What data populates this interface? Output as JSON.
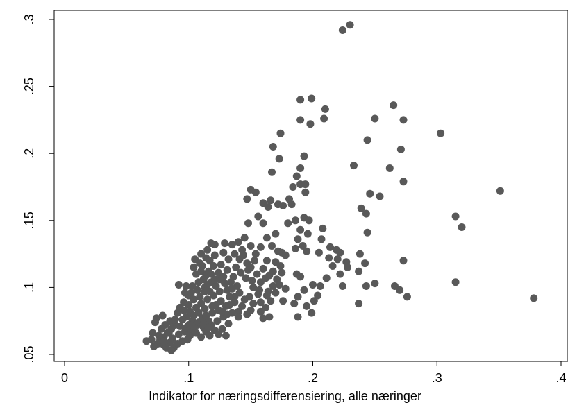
{
  "chart_data": {
    "type": "scatter",
    "title": "",
    "xlabel": "Indikator for næringsdifferensiering, alle næringer",
    "ylabel": "",
    "xlim": [
      0,
      0.4
    ],
    "ylim": [
      0.05,
      0.3
    ],
    "x_ticks": [
      0,
      0.1,
      0.2,
      0.3,
      0.4
    ],
    "x_tick_labels": [
      "0",
      ".1",
      ".2",
      ".3",
      ".4"
    ],
    "y_ticks": [
      0.05,
      0.1,
      0.15,
      0.2,
      0.25,
      0.3
    ],
    "y_tick_labels": [
      ".05",
      ".1",
      ".15",
      ".2",
      ".25",
      ".3"
    ],
    "grid": false,
    "legend": "none",
    "marker_color": "#595959",
    "points": [
      [
        0.224,
        0.292
      ],
      [
        0.23,
        0.296
      ],
      [
        0.19,
        0.24
      ],
      [
        0.199,
        0.241
      ],
      [
        0.21,
        0.233
      ],
      [
        0.19,
        0.225
      ],
      [
        0.198,
        0.222
      ],
      [
        0.209,
        0.226
      ],
      [
        0.174,
        0.215
      ],
      [
        0.168,
        0.205
      ],
      [
        0.173,
        0.196
      ],
      [
        0.167,
        0.186
      ],
      [
        0.193,
        0.198
      ],
      [
        0.265,
        0.236
      ],
      [
        0.25,
        0.226
      ],
      [
        0.273,
        0.225
      ],
      [
        0.244,
        0.21
      ],
      [
        0.303,
        0.215
      ],
      [
        0.271,
        0.203
      ],
      [
        0.233,
        0.191
      ],
      [
        0.262,
        0.189
      ],
      [
        0.273,
        0.179
      ],
      [
        0.351,
        0.172
      ],
      [
        0.315,
        0.153
      ],
      [
        0.32,
        0.145
      ],
      [
        0.246,
        0.17
      ],
      [
        0.254,
        0.168
      ],
      [
        0.239,
        0.159
      ],
      [
        0.243,
        0.155
      ],
      [
        0.244,
        0.141
      ],
      [
        0.238,
        0.125
      ],
      [
        0.242,
        0.118
      ],
      [
        0.273,
        0.12
      ],
      [
        0.237,
        0.112
      ],
      [
        0.228,
        0.115
      ],
      [
        0.25,
        0.103
      ],
      [
        0.243,
        0.101
      ],
      [
        0.266,
        0.101
      ],
      [
        0.27,
        0.098
      ],
      [
        0.276,
        0.093
      ],
      [
        0.315,
        0.104
      ],
      [
        0.378,
        0.092
      ],
      [
        0.237,
        0.088
      ],
      [
        0.187,
        0.183
      ],
      [
        0.19,
        0.177
      ],
      [
        0.194,
        0.177
      ],
      [
        0.184,
        0.175
      ],
      [
        0.194,
        0.171
      ],
      [
        0.19,
        0.189
      ],
      [
        0.181,
        0.166
      ],
      [
        0.183,
        0.162
      ],
      [
        0.176,
        0.161
      ],
      [
        0.172,
        0.162
      ],
      [
        0.164,
        0.16
      ],
      [
        0.166,
        0.165
      ],
      [
        0.16,
        0.163
      ],
      [
        0.15,
        0.173
      ],
      [
        0.154,
        0.171
      ],
      [
        0.147,
        0.166
      ],
      [
        0.156,
        0.153
      ],
      [
        0.148,
        0.148
      ],
      [
        0.16,
        0.148
      ],
      [
        0.186,
        0.15
      ],
      [
        0.193,
        0.152
      ],
      [
        0.197,
        0.15
      ],
      [
        0.18,
        0.148
      ],
      [
        0.19,
        0.143
      ],
      [
        0.196,
        0.14
      ],
      [
        0.188,
        0.136
      ],
      [
        0.192,
        0.131
      ],
      [
        0.186,
        0.129
      ],
      [
        0.195,
        0.127
      ],
      [
        0.208,
        0.144
      ],
      [
        0.207,
        0.136
      ],
      [
        0.214,
        0.13
      ],
      [
        0.205,
        0.126
      ],
      [
        0.219,
        0.128
      ],
      [
        0.222,
        0.126
      ],
      [
        0.213,
        0.122
      ],
      [
        0.22,
        0.121
      ],
      [
        0.227,
        0.119
      ],
      [
        0.216,
        0.116
      ],
      [
        0.222,
        0.11
      ],
      [
        0.211,
        0.107
      ],
      [
        0.206,
        0.101
      ],
      [
        0.2,
        0.102
      ],
      [
        0.204,
        0.094
      ],
      [
        0.201,
        0.09
      ],
      [
        0.19,
        0.108
      ],
      [
        0.187,
        0.11
      ],
      [
        0.193,
        0.098
      ],
      [
        0.188,
        0.093
      ],
      [
        0.185,
        0.088
      ],
      [
        0.188,
        0.078
      ],
      [
        0.195,
        0.086
      ],
      [
        0.199,
        0.081
      ],
      [
        0.224,
        0.101
      ],
      [
        0.17,
        0.14
      ],
      [
        0.163,
        0.137
      ],
      [
        0.158,
        0.13
      ],
      [
        0.167,
        0.131
      ],
      [
        0.172,
        0.127
      ],
      [
        0.175,
        0.126
      ],
      [
        0.178,
        0.124
      ],
      [
        0.163,
        0.12
      ],
      [
        0.17,
        0.119
      ],
      [
        0.174,
        0.116
      ],
      [
        0.168,
        0.112
      ],
      [
        0.175,
        0.111
      ],
      [
        0.171,
        0.106
      ],
      [
        0.173,
        0.102
      ],
      [
        0.178,
        0.099
      ],
      [
        0.17,
        0.096
      ],
      [
        0.176,
        0.09
      ],
      [
        0.164,
        0.097
      ],
      [
        0.166,
        0.09
      ],
      [
        0.162,
        0.085
      ],
      [
        0.158,
        0.082
      ],
      [
        0.165,
        0.078
      ],
      [
        0.16,
        0.077
      ],
      [
        0.154,
        0.125
      ],
      [
        0.15,
        0.131
      ],
      [
        0.145,
        0.137
      ],
      [
        0.14,
        0.134
      ],
      [
        0.147,
        0.118
      ],
      [
        0.15,
        0.115
      ],
      [
        0.155,
        0.11
      ],
      [
        0.146,
        0.107
      ],
      [
        0.142,
        0.111
      ],
      [
        0.139,
        0.101
      ],
      [
        0.152,
        0.1
      ],
      [
        0.156,
        0.095
      ],
      [
        0.149,
        0.093
      ],
      [
        0.145,
        0.091
      ],
      [
        0.152,
        0.088
      ],
      [
        0.158,
        0.089
      ],
      [
        0.143,
        0.086
      ],
      [
        0.15,
        0.083
      ],
      [
        0.147,
        0.08
      ],
      [
        0.14,
        0.082
      ],
      [
        0.133,
        0.087
      ],
      [
        0.137,
        0.093
      ],
      [
        0.131,
        0.098
      ],
      [
        0.134,
        0.104
      ],
      [
        0.128,
        0.108
      ],
      [
        0.131,
        0.113
      ],
      [
        0.126,
        0.117
      ],
      [
        0.132,
        0.121
      ],
      [
        0.128,
        0.126
      ],
      [
        0.121,
        0.132
      ],
      [
        0.129,
        0.133
      ],
      [
        0.135,
        0.132
      ],
      [
        0.143,
        0.128
      ],
      [
        0.121,
        0.124
      ],
      [
        0.117,
        0.12
      ],
      [
        0.111,
        0.116
      ],
      [
        0.116,
        0.112
      ],
      [
        0.112,
        0.106
      ],
      [
        0.118,
        0.104
      ],
      [
        0.122,
        0.101
      ],
      [
        0.125,
        0.097
      ],
      [
        0.12,
        0.094
      ],
      [
        0.115,
        0.091
      ],
      [
        0.126,
        0.09
      ],
      [
        0.13,
        0.086
      ],
      [
        0.124,
        0.083
      ],
      [
        0.119,
        0.081
      ],
      [
        0.128,
        0.078
      ],
      [
        0.123,
        0.075
      ],
      [
        0.118,
        0.072
      ],
      [
        0.132,
        0.073
      ],
      [
        0.127,
        0.069
      ],
      [
        0.121,
        0.068
      ],
      [
        0.112,
        0.07
      ],
      [
        0.107,
        0.072
      ],
      [
        0.103,
        0.075
      ],
      [
        0.098,
        0.078
      ],
      [
        0.101,
        0.082
      ],
      [
        0.106,
        0.085
      ],
      [
        0.11,
        0.088
      ],
      [
        0.104,
        0.091
      ],
      [
        0.1,
        0.094
      ],
      [
        0.096,
        0.089
      ],
      [
        0.093,
        0.085
      ],
      [
        0.091,
        0.081
      ],
      [
        0.095,
        0.076
      ],
      [
        0.089,
        0.072
      ],
      [
        0.086,
        0.069
      ],
      [
        0.083,
        0.066
      ],
      [
        0.08,
        0.063
      ],
      [
        0.087,
        0.062
      ],
      [
        0.092,
        0.065
      ],
      [
        0.097,
        0.067
      ],
      [
        0.101,
        0.064
      ],
      [
        0.106,
        0.066
      ],
      [
        0.11,
        0.063
      ],
      [
        0.114,
        0.067
      ],
      [
        0.117,
        0.064
      ],
      [
        0.124,
        0.065
      ],
      [
        0.13,
        0.064
      ],
      [
        0.085,
        0.059
      ],
      [
        0.08,
        0.057
      ],
      [
        0.075,
        0.058
      ],
      [
        0.072,
        0.056
      ],
      [
        0.066,
        0.06
      ],
      [
        0.07,
        0.061
      ],
      [
        0.077,
        0.061
      ],
      [
        0.082,
        0.055
      ],
      [
        0.088,
        0.055
      ],
      [
        0.073,
        0.074
      ],
      [
        0.074,
        0.077
      ],
      [
        0.079,
        0.079
      ],
      [
        0.085,
        0.075
      ],
      [
        0.081,
        0.072
      ],
      [
        0.078,
        0.069
      ],
      [
        0.084,
        0.066
      ],
      [
        0.089,
        0.076
      ],
      [
        0.093,
        0.071
      ],
      [
        0.098,
        0.07
      ],
      [
        0.102,
        0.069
      ],
      [
        0.104,
        0.079
      ],
      [
        0.108,
        0.081
      ],
      [
        0.111,
        0.077
      ],
      [
        0.114,
        0.079
      ],
      [
        0.116,
        0.075
      ],
      [
        0.119,
        0.086
      ],
      [
        0.113,
        0.084
      ],
      [
        0.109,
        0.093
      ],
      [
        0.113,
        0.097
      ],
      [
        0.107,
        0.098
      ],
      [
        0.103,
        0.101
      ],
      [
        0.108,
        0.104
      ],
      [
        0.113,
        0.1
      ],
      [
        0.098,
        0.101
      ],
      [
        0.092,
        0.102
      ],
      [
        0.097,
        0.096
      ],
      [
        0.102,
        0.096
      ],
      [
        0.106,
        0.11
      ],
      [
        0.11,
        0.112
      ],
      [
        0.114,
        0.109
      ],
      [
        0.118,
        0.11
      ],
      [
        0.124,
        0.111
      ],
      [
        0.12,
        0.116
      ],
      [
        0.125,
        0.106
      ],
      [
        0.129,
        0.103
      ],
      [
        0.136,
        0.108
      ],
      [
        0.138,
        0.115
      ],
      [
        0.141,
        0.121
      ],
      [
        0.137,
        0.125
      ],
      [
        0.144,
        0.124
      ],
      [
        0.148,
        0.113
      ],
      [
        0.153,
        0.12
      ],
      [
        0.151,
        0.105
      ],
      [
        0.158,
        0.104
      ],
      [
        0.162,
        0.107
      ],
      [
        0.16,
        0.114
      ],
      [
        0.165,
        0.109
      ],
      [
        0.168,
        0.101
      ],
      [
        0.163,
        0.094
      ],
      [
        0.157,
        0.098
      ],
      [
        0.141,
        0.096
      ],
      [
        0.135,
        0.099
      ],
      [
        0.133,
        0.093
      ],
      [
        0.137,
        0.089
      ],
      [
        0.14,
        0.078
      ],
      [
        0.135,
        0.081
      ],
      [
        0.131,
        0.08
      ],
      [
        0.127,
        0.082
      ],
      [
        0.122,
        0.087
      ],
      [
        0.117,
        0.097
      ],
      [
        0.115,
        0.102
      ],
      [
        0.121,
        0.106
      ],
      [
        0.1,
        0.087
      ],
      [
        0.096,
        0.083
      ],
      [
        0.1,
        0.072
      ],
      [
        0.104,
        0.071
      ],
      [
        0.108,
        0.074
      ],
      [
        0.112,
        0.073
      ],
      [
        0.116,
        0.07
      ],
      [
        0.095,
        0.06
      ],
      [
        0.099,
        0.061
      ],
      [
        0.091,
        0.058
      ],
      [
        0.086,
        0.053
      ],
      [
        0.08,
        0.06
      ],
      [
        0.076,
        0.064
      ],
      [
        0.071,
        0.066
      ],
      [
        0.11,
        0.125
      ],
      [
        0.105,
        0.121
      ],
      [
        0.115,
        0.128
      ],
      [
        0.118,
        0.133
      ],
      [
        0.114,
        0.122
      ],
      [
        0.109,
        0.118
      ],
      [
        0.104,
        0.115
      ]
    ]
  }
}
